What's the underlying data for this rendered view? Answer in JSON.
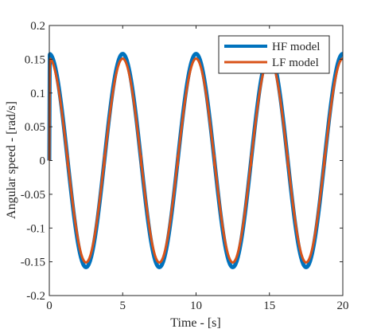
{
  "chart_data": {
    "type": "line",
    "title": "",
    "xlabel": "Time - [s]",
    "ylabel": "Angular speed - [rad/s]",
    "xlim": [
      0,
      20
    ],
    "ylim": [
      -0.2,
      0.2
    ],
    "xticks": [
      0,
      5,
      10,
      15,
      20
    ],
    "yticks": [
      -0.2,
      -0.15,
      -0.1,
      -0.05,
      0,
      0.05,
      0.1,
      0.15,
      0.2
    ],
    "xtick_labels": [
      "0",
      "5",
      "10",
      "15",
      "20"
    ],
    "ytick_labels": [
      "-0.2",
      "-0.15",
      "-0.1",
      "-0.05",
      "0",
      "0.05",
      "0.1",
      "0.15",
      "0.2"
    ],
    "grid": false,
    "legend_position": "top-right",
    "series": [
      {
        "name": "HF model",
        "color": "#0072BD",
        "description_values": {
          "amplitude": 0.158,
          "period_s": 5.0,
          "phase": "cosine",
          "initial_value": 0.0
        },
        "x": [
          0,
          0.05,
          1.25,
          2.5,
          3.75,
          5.0,
          6.25,
          7.5,
          8.75,
          10.0,
          11.25,
          12.5,
          13.75,
          15.0,
          16.25,
          17.5,
          18.75,
          20.0
        ],
        "values": [
          0.0,
          0.156,
          0.0,
          -0.158,
          0.0,
          0.158,
          0.0,
          -0.158,
          0.0,
          0.158,
          0.0,
          -0.158,
          0.0,
          0.158,
          0.0,
          -0.158,
          0.0,
          0.158
        ]
      },
      {
        "name": "LF model",
        "color": "#D95319",
        "description_values": {
          "amplitude": 0.151,
          "period_s": 5.0,
          "phase": "cosine",
          "initial_value": 0.0
        },
        "x": [
          0,
          0.05,
          1.25,
          2.5,
          3.75,
          5.0,
          6.25,
          7.5,
          8.75,
          10.0,
          11.25,
          12.5,
          13.75,
          15.0,
          16.25,
          17.5,
          18.75,
          20.0
        ],
        "values": [
          0.0,
          0.15,
          0.0,
          -0.151,
          0.0,
          0.151,
          0.0,
          -0.151,
          0.0,
          0.151,
          0.0,
          -0.151,
          0.0,
          0.151,
          0.0,
          -0.151,
          0.0,
          0.151
        ]
      }
    ]
  }
}
